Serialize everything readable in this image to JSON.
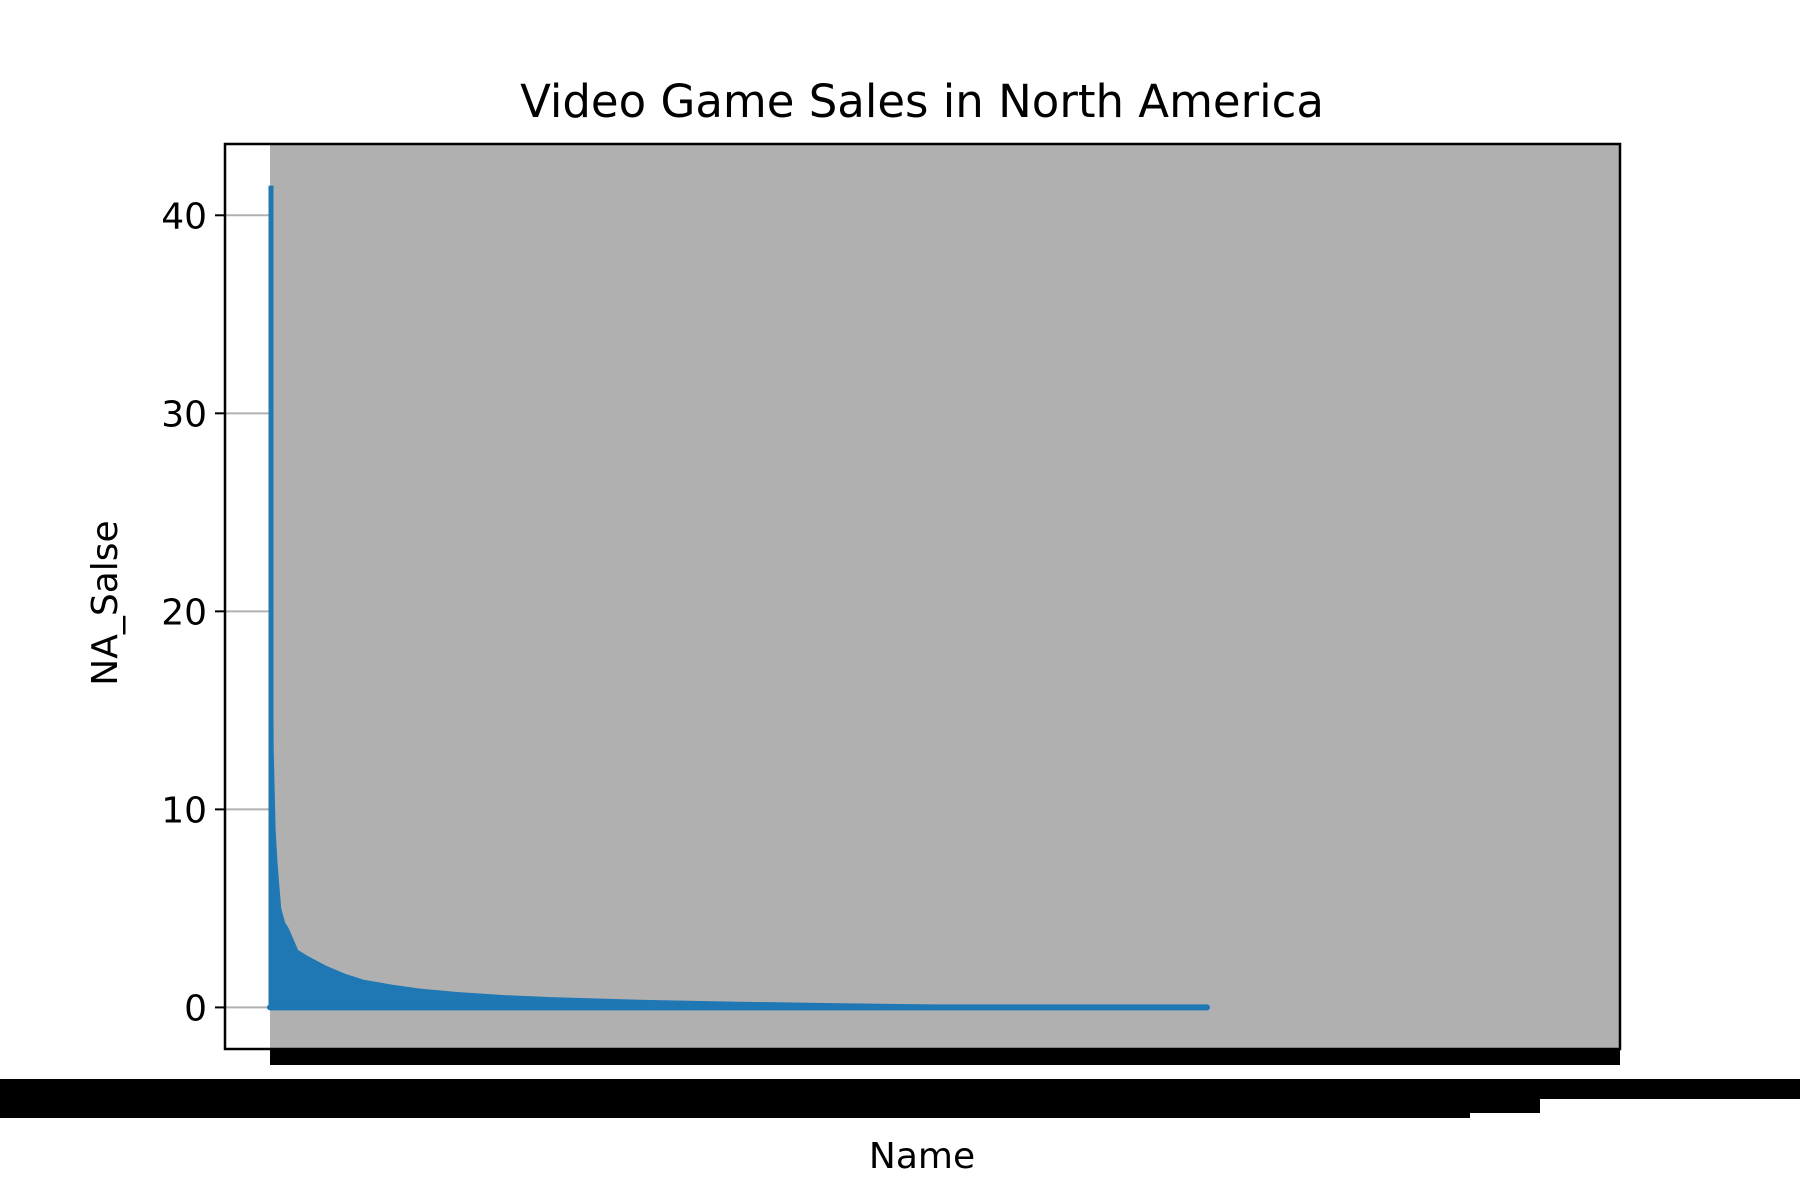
{
  "chart_data": {
    "type": "line",
    "title": "Video Game Sales in North America",
    "xlabel": "Name",
    "ylabel": "NA_Salse",
    "ylim": [
      -2.1,
      43.6
    ],
    "yticks": [
      0,
      10,
      20,
      30,
      40
    ],
    "grid": "y",
    "legend": "none",
    "x_tick_labels": "illegible (thousands of overlapping game names)",
    "series": [
      {
        "color": "#1f77b4",
        "envelope": [
          {
            "x": 0.0,
            "y": 41.5
          },
          {
            "x": 0.002,
            "y": 27.0
          },
          {
            "x": 0.004,
            "y": 13.0
          },
          {
            "x": 0.006,
            "y": 9.0
          },
          {
            "x": 0.008,
            "y": 7.3
          },
          {
            "x": 0.012,
            "y": 5.0
          },
          {
            "x": 0.016,
            "y": 4.3
          },
          {
            "x": 0.02,
            "y": 4.0
          },
          {
            "x": 0.03,
            "y": 2.9
          },
          {
            "x": 0.04,
            "y": 2.6
          },
          {
            "x": 0.06,
            "y": 2.1
          },
          {
            "x": 0.08,
            "y": 1.7
          },
          {
            "x": 0.1,
            "y": 1.4
          },
          {
            "x": 0.13,
            "y": 1.15
          },
          {
            "x": 0.16,
            "y": 0.95
          },
          {
            "x": 0.2,
            "y": 0.78
          },
          {
            "x": 0.25,
            "y": 0.62
          },
          {
            "x": 0.3,
            "y": 0.52
          },
          {
            "x": 0.4,
            "y": 0.38
          },
          {
            "x": 0.5,
            "y": 0.29
          },
          {
            "x": 0.6,
            "y": 0.22
          },
          {
            "x": 0.7,
            "y": 0.15
          },
          {
            "x": 0.8,
            "y": 0.09
          },
          {
            "x": 0.9,
            "y": 0.04
          },
          {
            "x": 1.0,
            "y": 0.0
          }
        ]
      }
    ]
  }
}
